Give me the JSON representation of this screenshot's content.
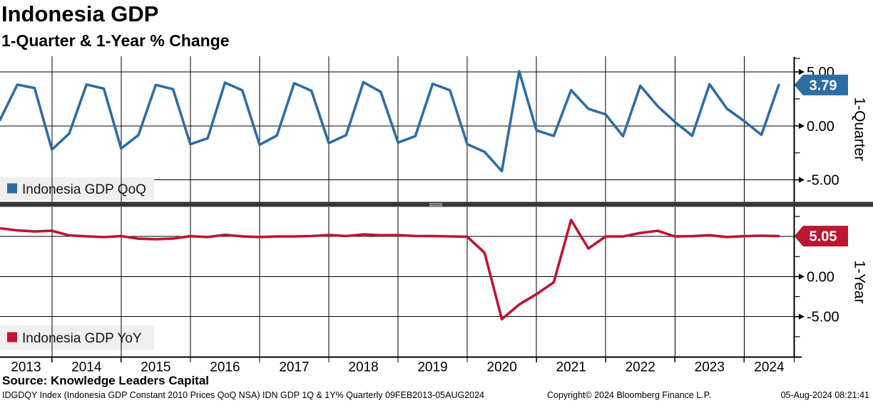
{
  "header": {
    "title": "Indonesia GDP",
    "subtitle": "1-Quarter & 1-Year % Change"
  },
  "x_axis": {
    "year_labels": [
      "2013",
      "2014",
      "2015",
      "2016",
      "2017",
      "2018",
      "2019",
      "2020",
      "2021",
      "2022",
      "2023",
      "2024"
    ]
  },
  "separator": {
    "color": "#373737",
    "handle_color": "#9a9a9a"
  },
  "footer": {
    "source": "Source: Knowledge Leaders Capital",
    "disclaimer": "IDGDQY Index (Indonesia GDP Constant 2010 Prices QoQ NSA) IDN GDP 1Q & 1Y%  Quarterly 09FEB2013-05AUG2024",
    "copyright": "Copyright© 2024 Bloomberg Finance L.P.",
    "timestamp": "05-Aug-2024 08:21:41"
  },
  "chart_data": [
    {
      "type": "line",
      "series_name": "Indonesia GDP QoQ",
      "axis_title": "1-Quarter",
      "color": "#2e6da4",
      "legend_bg": "#efefef",
      "legend_position": "bottom-left",
      "grid": true,
      "ytick_values": [
        5,
        0,
        -5
      ],
      "ytick_labels": [
        "5.00",
        "0.00",
        "-5.00"
      ],
      "ylim": [
        -7.04,
        6.45
      ],
      "last_value": 3.79,
      "last_value_label": "3.79",
      "x_labels": [
        "2013 Q1",
        "2013 Q2",
        "2013 Q3",
        "2013 Q4",
        "2014 Q1",
        "2014 Q2",
        "2014 Q3",
        "2014 Q4",
        "2015 Q1",
        "2015 Q2",
        "2015 Q3",
        "2015 Q4",
        "2016 Q1",
        "2016 Q2",
        "2016 Q3",
        "2016 Q4",
        "2017 Q1",
        "2017 Q2",
        "2017 Q3",
        "2017 Q4",
        "2018 Q1",
        "2018 Q2",
        "2018 Q3",
        "2018 Q4",
        "2019 Q1",
        "2019 Q2",
        "2019 Q3",
        "2019 Q4",
        "2020 Q1",
        "2020 Q2",
        "2020 Q3",
        "2020 Q4",
        "2021 Q1",
        "2021 Q2",
        "2021 Q3",
        "2021 Q4",
        "2022 Q1",
        "2022 Q2",
        "2022 Q3",
        "2022 Q4",
        "2023 Q1",
        "2023 Q2",
        "2023 Q3",
        "2023 Q4",
        "2024 Q1",
        "2024 Q2"
      ],
      "values": [
        0.55,
        3.82,
        3.5,
        -2.2,
        -0.7,
        3.83,
        3.45,
        -2.1,
        -0.85,
        3.8,
        3.4,
        -1.7,
        -1.15,
        4.0,
        3.3,
        -1.75,
        -0.9,
        3.95,
        3.25,
        -1.6,
        -0.85,
        4.05,
        3.15,
        -1.55,
        -0.95,
        3.9,
        3.3,
        -1.7,
        -2.41,
        -4.19,
        5.05,
        -0.42,
        -0.93,
        3.31,
        1.58,
        1.06,
        -0.95,
        3.72,
        1.83,
        0.36,
        -0.92,
        3.86,
        1.6,
        0.45,
        -0.83,
        3.79
      ]
    },
    {
      "type": "line",
      "series_name": "Indonesia GDP YoY",
      "axis_title": "1-Year",
      "color": "#bd1632",
      "legend_bg": "#efefef",
      "legend_position": "bottom-left",
      "grid": true,
      "ytick_values": [
        5,
        0,
        -5
      ],
      "ytick_labels": [
        "5.00",
        "0.00",
        "-5.00"
      ],
      "ylim": [
        -10.0,
        8.66
      ],
      "last_value": 5.05,
      "last_value_label": "5.05",
      "x_labels": [
        "2013 Q1",
        "2013 Q2",
        "2013 Q3",
        "2013 Q4",
        "2014 Q1",
        "2014 Q2",
        "2014 Q3",
        "2014 Q4",
        "2015 Q1",
        "2015 Q2",
        "2015 Q3",
        "2015 Q4",
        "2016 Q1",
        "2016 Q2",
        "2016 Q3",
        "2016 Q4",
        "2017 Q1",
        "2017 Q2",
        "2017 Q3",
        "2017 Q4",
        "2018 Q1",
        "2018 Q2",
        "2018 Q3",
        "2018 Q4",
        "2019 Q1",
        "2019 Q2",
        "2019 Q3",
        "2019 Q4",
        "2020 Q1",
        "2020 Q2",
        "2020 Q3",
        "2020 Q4",
        "2021 Q1",
        "2021 Q2",
        "2021 Q3",
        "2021 Q4",
        "2022 Q1",
        "2022 Q2",
        "2022 Q3",
        "2022 Q4",
        "2023 Q1",
        "2023 Q2",
        "2023 Q3",
        "2023 Q4",
        "2024 Q1",
        "2024 Q2"
      ],
      "values": [
        6.03,
        5.76,
        5.63,
        5.72,
        5.14,
        5.03,
        4.93,
        5.05,
        4.73,
        4.66,
        4.74,
        5.04,
        4.94,
        5.21,
        5.03,
        4.94,
        5.01,
        5.01,
        5.06,
        5.19,
        5.06,
        5.27,
        5.17,
        5.18,
        5.07,
        5.05,
        5.02,
        4.97,
        2.97,
        -5.32,
        -3.49,
        -2.19,
        -0.71,
        7.07,
        3.51,
        5.02,
        5.01,
        5.44,
        5.72,
        5.01,
        5.04,
        5.17,
        4.94,
        5.04,
        5.11,
        5.05
      ]
    }
  ]
}
